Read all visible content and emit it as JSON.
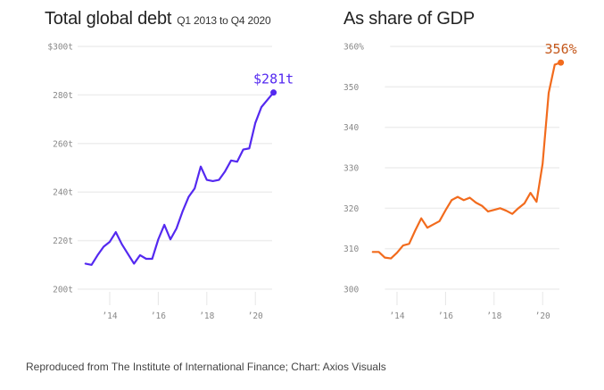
{
  "charts": {
    "left": {
      "title": "Total global debt",
      "subtitle": "Q1 2013 to Q4 2020"
    },
    "right": {
      "title": "As share of GDP"
    }
  },
  "source": "Reproduced from The Institute of International Finance; Chart: Axios Visuals",
  "chart_data": [
    {
      "type": "line",
      "title": "Total global debt",
      "subtitle": "Q1 2013 to Q4 2020",
      "xlabel": "",
      "ylabel": "",
      "color": "#5429f0",
      "x_start": 2013.0,
      "x_step": 0.25,
      "xlim": [
        2012.8,
        2020.85
      ],
      "ylim": [
        200,
        300
      ],
      "y_ticks": [
        {
          "value": 300,
          "label": "$300t"
        },
        {
          "value": 280,
          "label": "280t"
        },
        {
          "value": 260,
          "label": "260t"
        },
        {
          "value": 240,
          "label": "240t"
        },
        {
          "value": 220,
          "label": "220t"
        },
        {
          "value": 200,
          "label": "200t"
        }
      ],
      "x_ticks": [
        {
          "value": 2014,
          "label": "’14"
        },
        {
          "value": 2016,
          "label": "’16"
        },
        {
          "value": 2018,
          "label": "’18"
        },
        {
          "value": 2020,
          "label": "’20"
        }
      ],
      "grid": true,
      "end_label": "$281t",
      "values": [
        210.5,
        210,
        214,
        217.5,
        219.5,
        223.5,
        218.5,
        214.5,
        210.5,
        214,
        212.5,
        212.5,
        220.5,
        226.5,
        220.5,
        225,
        232,
        238,
        241.5,
        250.5,
        245,
        244.5,
        245,
        248.5,
        253,
        252.5,
        257.5,
        258,
        268.5,
        275,
        278,
        281
      ]
    },
    {
      "type": "line",
      "title": "As share of GDP",
      "xlabel": "",
      "ylabel": "",
      "color": "#f26b1d",
      "label_color": "#c4571a",
      "x_start": 2013.0,
      "x_step": 0.25,
      "xlim": [
        2012.8,
        2020.85
      ],
      "ylim": [
        300,
        360
      ],
      "y_ticks": [
        {
          "value": 360,
          "label": "360%"
        },
        {
          "value": 350,
          "label": "350"
        },
        {
          "value": 340,
          "label": "340"
        },
        {
          "value": 330,
          "label": "330"
        },
        {
          "value": 320,
          "label": "320"
        },
        {
          "value": 310,
          "label": "310"
        },
        {
          "value": 300,
          "label": "300"
        }
      ],
      "x_ticks": [
        {
          "value": 2014,
          "label": "’14"
        },
        {
          "value": 2016,
          "label": "’16"
        },
        {
          "value": 2018,
          "label": "’18"
        },
        {
          "value": 2020,
          "label": "’20"
        }
      ],
      "grid": true,
      "end_label": "356%",
      "values": [
        309.2,
        309.2,
        307.8,
        307.6,
        309.0,
        310.8,
        311.2,
        314.5,
        317.5,
        315.2,
        316.0,
        316.8,
        319.5,
        322.0,
        322.8,
        322.0,
        322.6,
        321.4,
        320.6,
        319.2,
        319.6,
        320.0,
        319.4,
        318.6,
        320.0,
        321.2,
        323.8,
        321.6,
        331.0,
        348.5,
        355.5,
        356
      ]
    }
  ]
}
